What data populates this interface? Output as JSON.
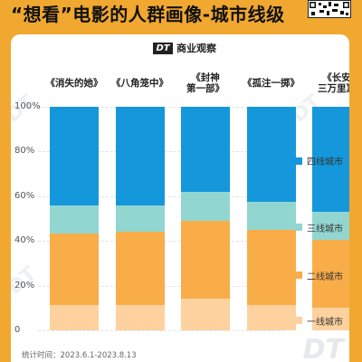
{
  "header": {
    "title": "“想看”电影的人群画像-城市线级"
  },
  "brand": {
    "logo_text": "DT",
    "name": "商业观察"
  },
  "footnote": "统计时间：2023.6.1-2023.8.13",
  "colors": {
    "background": "#f0a830",
    "tier1": "#fdd29e",
    "tier2": "#f8ad49",
    "tier3": "#92d6d1",
    "tier4": "#1597db"
  },
  "chart_data": {
    "type": "bar",
    "stacked": true,
    "title": "",
    "categories": [
      "《消失的她》",
      "《八角笼中》",
      "《封神\n第一部》",
      "《孤注一掷》",
      "《长安\n三万里》"
    ],
    "series": [
      {
        "name": "一线城市",
        "values": [
          11.5,
          11.5,
          14,
          11.5,
          10
        ]
      },
      {
        "name": "二线城市",
        "values": [
          32,
          32.5,
          35,
          33.5,
          30.5
        ]
      },
      {
        "name": "三线城市",
        "values": [
          12.5,
          12,
          13,
          12.5,
          12.5
        ]
      },
      {
        "name": "四线城市",
        "values": [
          44,
          44,
          38,
          42.5,
          47
        ]
      }
    ],
    "ylim": [
      0,
      100
    ],
    "yticks": [
      "0",
      "20%",
      "40%",
      "60%",
      "80%",
      "100%"
    ],
    "legend_position": "right",
    "grid": true
  }
}
